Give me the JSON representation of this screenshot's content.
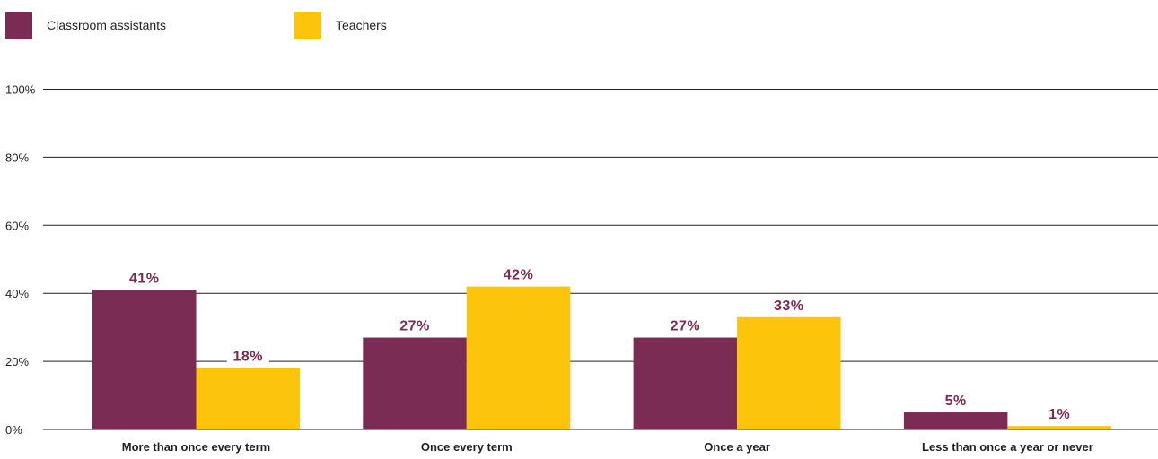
{
  "chart_data": {
    "type": "bar",
    "categories": [
      "More than once every term",
      "Once every term",
      "Once a year",
      "Less than once a year or never"
    ],
    "series": [
      {
        "name": "Classroom assistants",
        "values": [
          41,
          27,
          27,
          5
        ],
        "labels": [
          "41%",
          "27%",
          "27%",
          "5%"
        ],
        "color": "#7a2c55"
      },
      {
        "name": "Teachers",
        "values": [
          18,
          42,
          33,
          1
        ],
        "labels": [
          "18%",
          "42%",
          "33%",
          "1%"
        ],
        "color": "#fcc40a"
      }
    ],
    "yticks": [
      0,
      20,
      40,
      60,
      80,
      100
    ],
    "ytick_labels": [
      "0%",
      "20%",
      "40%",
      "60%",
      "80%",
      "100%"
    ],
    "ylim": [
      0,
      100
    ],
    "grid": true,
    "legend_position": "top-left",
    "value_label_color": "#7a2c55"
  }
}
